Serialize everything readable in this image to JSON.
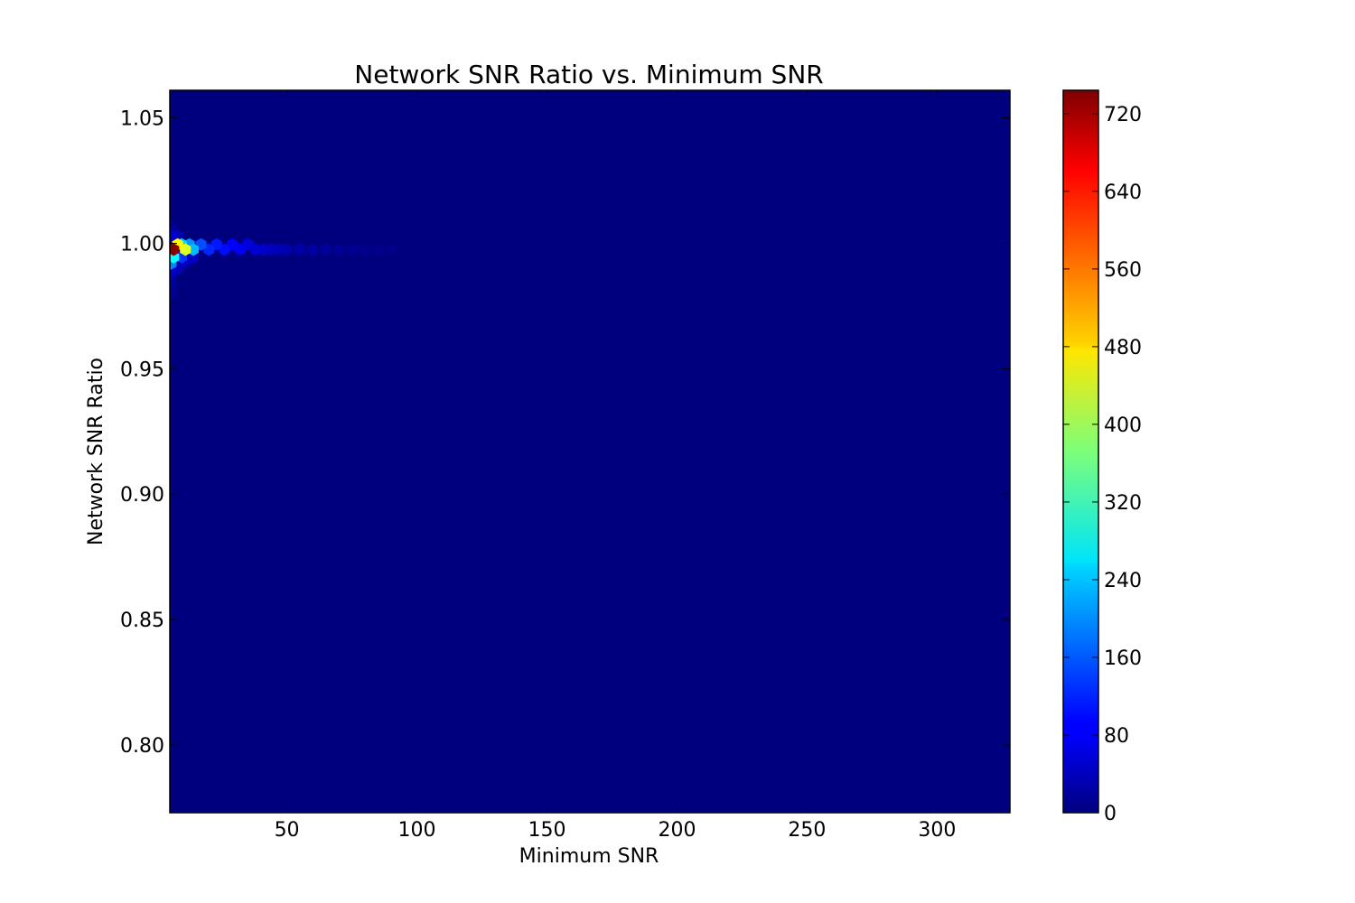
{
  "chart_data": {
    "type": "heatmap",
    "subtype": "hexbin",
    "title": "Network SNR Ratio vs. Minimum SNR",
    "xlabel": "Minimum SNR",
    "ylabel": "Network SNR Ratio",
    "xlim": [
      5,
      328
    ],
    "ylim": [
      0.773,
      1.061
    ],
    "xticks": [
      50,
      100,
      150,
      200,
      250,
      300
    ],
    "xtick_labels": [
      "50",
      "100",
      "150",
      "200",
      "250",
      "300"
    ],
    "yticks": [
      0.8,
      0.85,
      0.9,
      0.95,
      1.0,
      1.05
    ],
    "ytick_labels": [
      "0.80",
      "0.85",
      "0.90",
      "0.95",
      "1.00",
      "1.05"
    ],
    "background_count": 0,
    "colorbar": {
      "colormap": "jet",
      "range": [
        0,
        744
      ],
      "ticks": [
        0,
        80,
        160,
        240,
        320,
        400,
        480,
        560,
        640,
        720
      ],
      "tick_labels": [
        "0",
        "80",
        "160",
        "240",
        "320",
        "400",
        "480",
        "560",
        "640",
        "720"
      ]
    },
    "grid": false,
    "bins": [
      {
        "x": 6.5,
        "y": 0.9975,
        "count": 740
      },
      {
        "x": 8.0,
        "y": 0.9995,
        "count": 470
      },
      {
        "x": 11.0,
        "y": 0.9975,
        "count": 440
      },
      {
        "x": 6.5,
        "y": 0.9945,
        "count": 280
      },
      {
        "x": 9.5,
        "y": 0.9995,
        "count": 250
      },
      {
        "x": 14.0,
        "y": 0.9975,
        "count": 230
      },
      {
        "x": 12.5,
        "y": 0.9995,
        "count": 200
      },
      {
        "x": 5.5,
        "y": 0.992,
        "count": 190
      },
      {
        "x": 17.0,
        "y": 0.9995,
        "count": 150
      },
      {
        "x": 9.5,
        "y": 0.9945,
        "count": 130
      },
      {
        "x": 20.0,
        "y": 0.9975,
        "count": 120
      },
      {
        "x": 23.0,
        "y": 0.9995,
        "count": 110
      },
      {
        "x": 26.0,
        "y": 0.9975,
        "count": 100
      },
      {
        "x": 29.0,
        "y": 0.9995,
        "count": 90
      },
      {
        "x": 32.0,
        "y": 0.9975,
        "count": 80
      },
      {
        "x": 35.0,
        "y": 0.9995,
        "count": 70
      },
      {
        "x": 38.0,
        "y": 0.9975,
        "count": 60
      },
      {
        "x": 41.0,
        "y": 0.9975,
        "count": 52
      },
      {
        "x": 44.0,
        "y": 0.9975,
        "count": 45
      },
      {
        "x": 47.0,
        "y": 0.9975,
        "count": 40
      },
      {
        "x": 50.0,
        "y": 0.9975,
        "count": 35
      },
      {
        "x": 55.0,
        "y": 0.9975,
        "count": 30
      },
      {
        "x": 60.0,
        "y": 0.9975,
        "count": 25
      },
      {
        "x": 65.0,
        "y": 0.9975,
        "count": 20
      },
      {
        "x": 70.0,
        "y": 0.9975,
        "count": 16
      },
      {
        "x": 75.0,
        "y": 0.9975,
        "count": 12
      },
      {
        "x": 80.0,
        "y": 0.9975,
        "count": 10
      },
      {
        "x": 85.0,
        "y": 0.9975,
        "count": 8
      },
      {
        "x": 90.0,
        "y": 0.9975,
        "count": 6
      },
      {
        "x": 5.5,
        "y": 1.003,
        "count": 60
      },
      {
        "x": 8.0,
        "y": 1.003,
        "count": 40
      },
      {
        "x": 5.5,
        "y": 1.006,
        "count": 25
      },
      {
        "x": 5.5,
        "y": 0.988,
        "count": 50
      },
      {
        "x": 8.0,
        "y": 0.99,
        "count": 40
      },
      {
        "x": 11.0,
        "y": 0.9925,
        "count": 45
      },
      {
        "x": 14.0,
        "y": 0.9945,
        "count": 50
      },
      {
        "x": 5.5,
        "y": 0.984,
        "count": 25
      },
      {
        "x": 5.5,
        "y": 0.98,
        "count": 15
      }
    ]
  }
}
